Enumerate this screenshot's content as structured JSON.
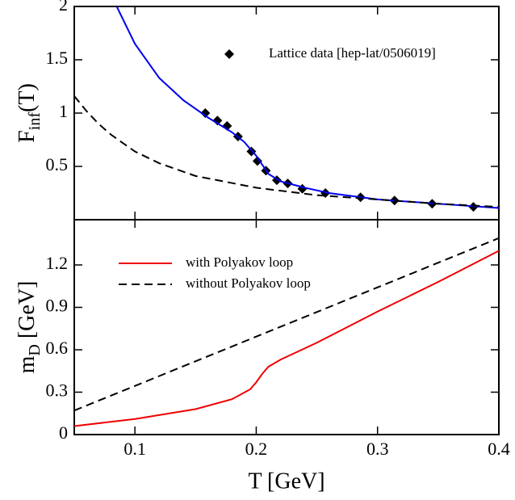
{
  "chart_data": [
    {
      "type": "line",
      "ylabel": [
        "F",
        "inf",
        "(T)"
      ],
      "xlim": [
        0.05,
        0.4
      ],
      "ylim": [
        0,
        2
      ],
      "yticks": [
        0.5,
        1,
        1.5,
        2
      ],
      "series": [
        {
          "name": "Lattice data [hep-lat/0506019]",
          "color": "#000000",
          "style": "marker",
          "x": [
            0.158,
            0.168,
            0.176,
            0.185,
            0.196,
            0.201,
            0.208,
            0.217,
            0.226,
            0.238,
            0.257,
            0.286,
            0.314,
            0.345,
            0.379
          ],
          "values": [
            1.0,
            0.93,
            0.88,
            0.78,
            0.64,
            0.55,
            0.46,
            0.37,
            0.34,
            0.29,
            0.25,
            0.21,
            0.18,
            0.15,
            0.12
          ]
        },
        {
          "color": "#0000ee",
          "style": "solid",
          "x": [
            0.085,
            0.1,
            0.12,
            0.14,
            0.16,
            0.18,
            0.19,
            0.2,
            0.21,
            0.22,
            0.24,
            0.26,
            0.3,
            0.35,
            0.4
          ],
          "values": [
            2.0,
            1.65,
            1.33,
            1.12,
            0.96,
            0.82,
            0.73,
            0.6,
            0.43,
            0.36,
            0.3,
            0.25,
            0.19,
            0.15,
            0.11
          ]
        },
        {
          "color": "#000000",
          "style": "dashed",
          "x": [
            0.05,
            0.06,
            0.07,
            0.08,
            0.1,
            0.12,
            0.15,
            0.2,
            0.25,
            0.3,
            0.35,
            0.4
          ],
          "values": [
            1.16,
            1.02,
            0.9,
            0.8,
            0.64,
            0.53,
            0.41,
            0.3,
            0.23,
            0.19,
            0.15,
            0.12
          ]
        }
      ]
    },
    {
      "type": "line",
      "xlabel": "T [GeV]",
      "ylabel": [
        "m",
        "D",
        " [GeV]"
      ],
      "xlim": [
        0.05,
        0.4
      ],
      "ylim": [
        0,
        1.52
      ],
      "xticks": [
        0.1,
        0.2,
        0.3,
        0.4
      ],
      "yticks": [
        0,
        0.3,
        0.6,
        0.9,
        1.2
      ],
      "series": [
        {
          "name": "with Polyakov loop",
          "color": "#ee0000",
          "style": "solid",
          "x": [
            0.05,
            0.1,
            0.15,
            0.18,
            0.195,
            0.2,
            0.205,
            0.21,
            0.22,
            0.25,
            0.3,
            0.35,
            0.4
          ],
          "values": [
            0.06,
            0.11,
            0.18,
            0.25,
            0.32,
            0.37,
            0.43,
            0.48,
            0.53,
            0.65,
            0.87,
            1.08,
            1.3
          ]
        },
        {
          "name": "without Polyakov loop",
          "color": "#000000",
          "style": "dashed",
          "x": [
            0.05,
            0.4
          ],
          "values": [
            0.17,
            1.39
          ]
        }
      ]
    }
  ]
}
